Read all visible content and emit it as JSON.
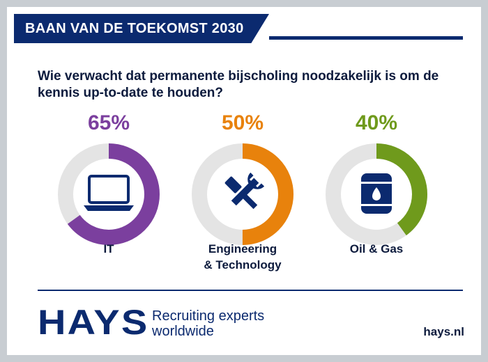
{
  "header": {
    "title": "BAAN VAN DE TOEKOMST 2030"
  },
  "question": "Wie verwacht dat permanente bijscholing noodzakelijk is om de kennis up-to-date te houden?",
  "chart_data": {
    "type": "pie",
    "variant": "donut",
    "categories": [
      "IT",
      "Engineering & Technology",
      "Oil & Gas"
    ],
    "values": [
      65,
      50,
      40
    ],
    "value_labels": [
      "65%",
      "50%",
      "40%"
    ],
    "category_lines": [
      [
        "IT"
      ],
      [
        "Engineering",
        "& Technology"
      ],
      [
        "Oil & Gas"
      ]
    ],
    "colors": [
      "#7b3f9e",
      "#e8820c",
      "#6f9a1c"
    ],
    "track_color": "#e4e4e4",
    "icons": [
      "laptop-icon",
      "tools-icon",
      "oil-barrel-icon"
    ],
    "unit": "%"
  },
  "footer": {
    "logo_text": "HAYS",
    "tagline_line1": "Recruiting experts",
    "tagline_line2": "worldwide",
    "site": "hays.nl"
  },
  "colors": {
    "navy": "#0b2a6f",
    "text": "#0d1b3d",
    "frame": "#c8cdd2"
  }
}
